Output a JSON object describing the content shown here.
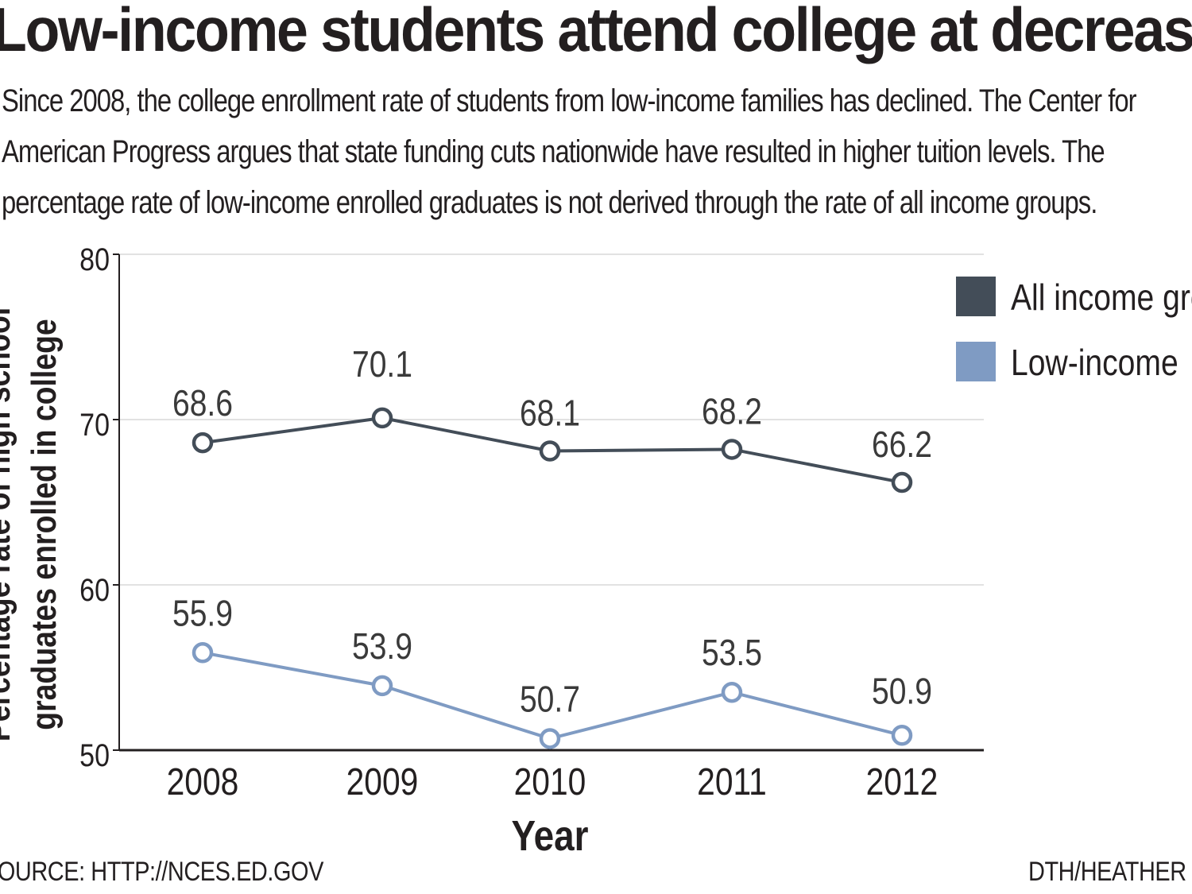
{
  "title": "Low-income students attend college at decreased rates",
  "subtitle_lines": [
    "Since 2008, the college enrollment rate of students from low-income families has declined. The Center for",
    "American Progress argues that state funding cuts nationwide have resulted in higher tuition levels. The",
    "percentage rate of low-income enrolled graduates is not derived through the rate of all income groups."
  ],
  "source": "SOURCE: HTTP://NCES.ED.GOV",
  "credit": "DTH/HEATHER CALDWELL",
  "colors": {
    "all_income": "#434d58",
    "low_income": "#7f9bc3",
    "grid": "#d9d9d9",
    "axis": "#231f20"
  },
  "chart_data": {
    "type": "line",
    "title": "Low-income students attend college at decreased rates",
    "xlabel": "Year",
    "ylabel": "Percentage rate of high school graduates enrolled in college",
    "ylabel_lines": [
      "Percentage rate of high school",
      "graduates enrolled in college"
    ],
    "x": [
      "2008",
      "2009",
      "2010",
      "2011",
      "2012"
    ],
    "ylim": [
      50,
      80
    ],
    "yticks": [
      50,
      60,
      70,
      80
    ],
    "grid": true,
    "legend": "top-right",
    "series": [
      {
        "name": "All income groups",
        "values": [
          68.6,
          70.1,
          68.1,
          68.2,
          66.2
        ],
        "labels": [
          "68.6",
          "70.1",
          "68.1",
          "68.2",
          "66.2"
        ]
      },
      {
        "name": "Low-income",
        "values": [
          55.9,
          53.9,
          50.7,
          53.5,
          50.9
        ],
        "labels": [
          "55.9",
          "53.9",
          "50.7",
          "53.5",
          "50.9"
        ]
      }
    ]
  }
}
